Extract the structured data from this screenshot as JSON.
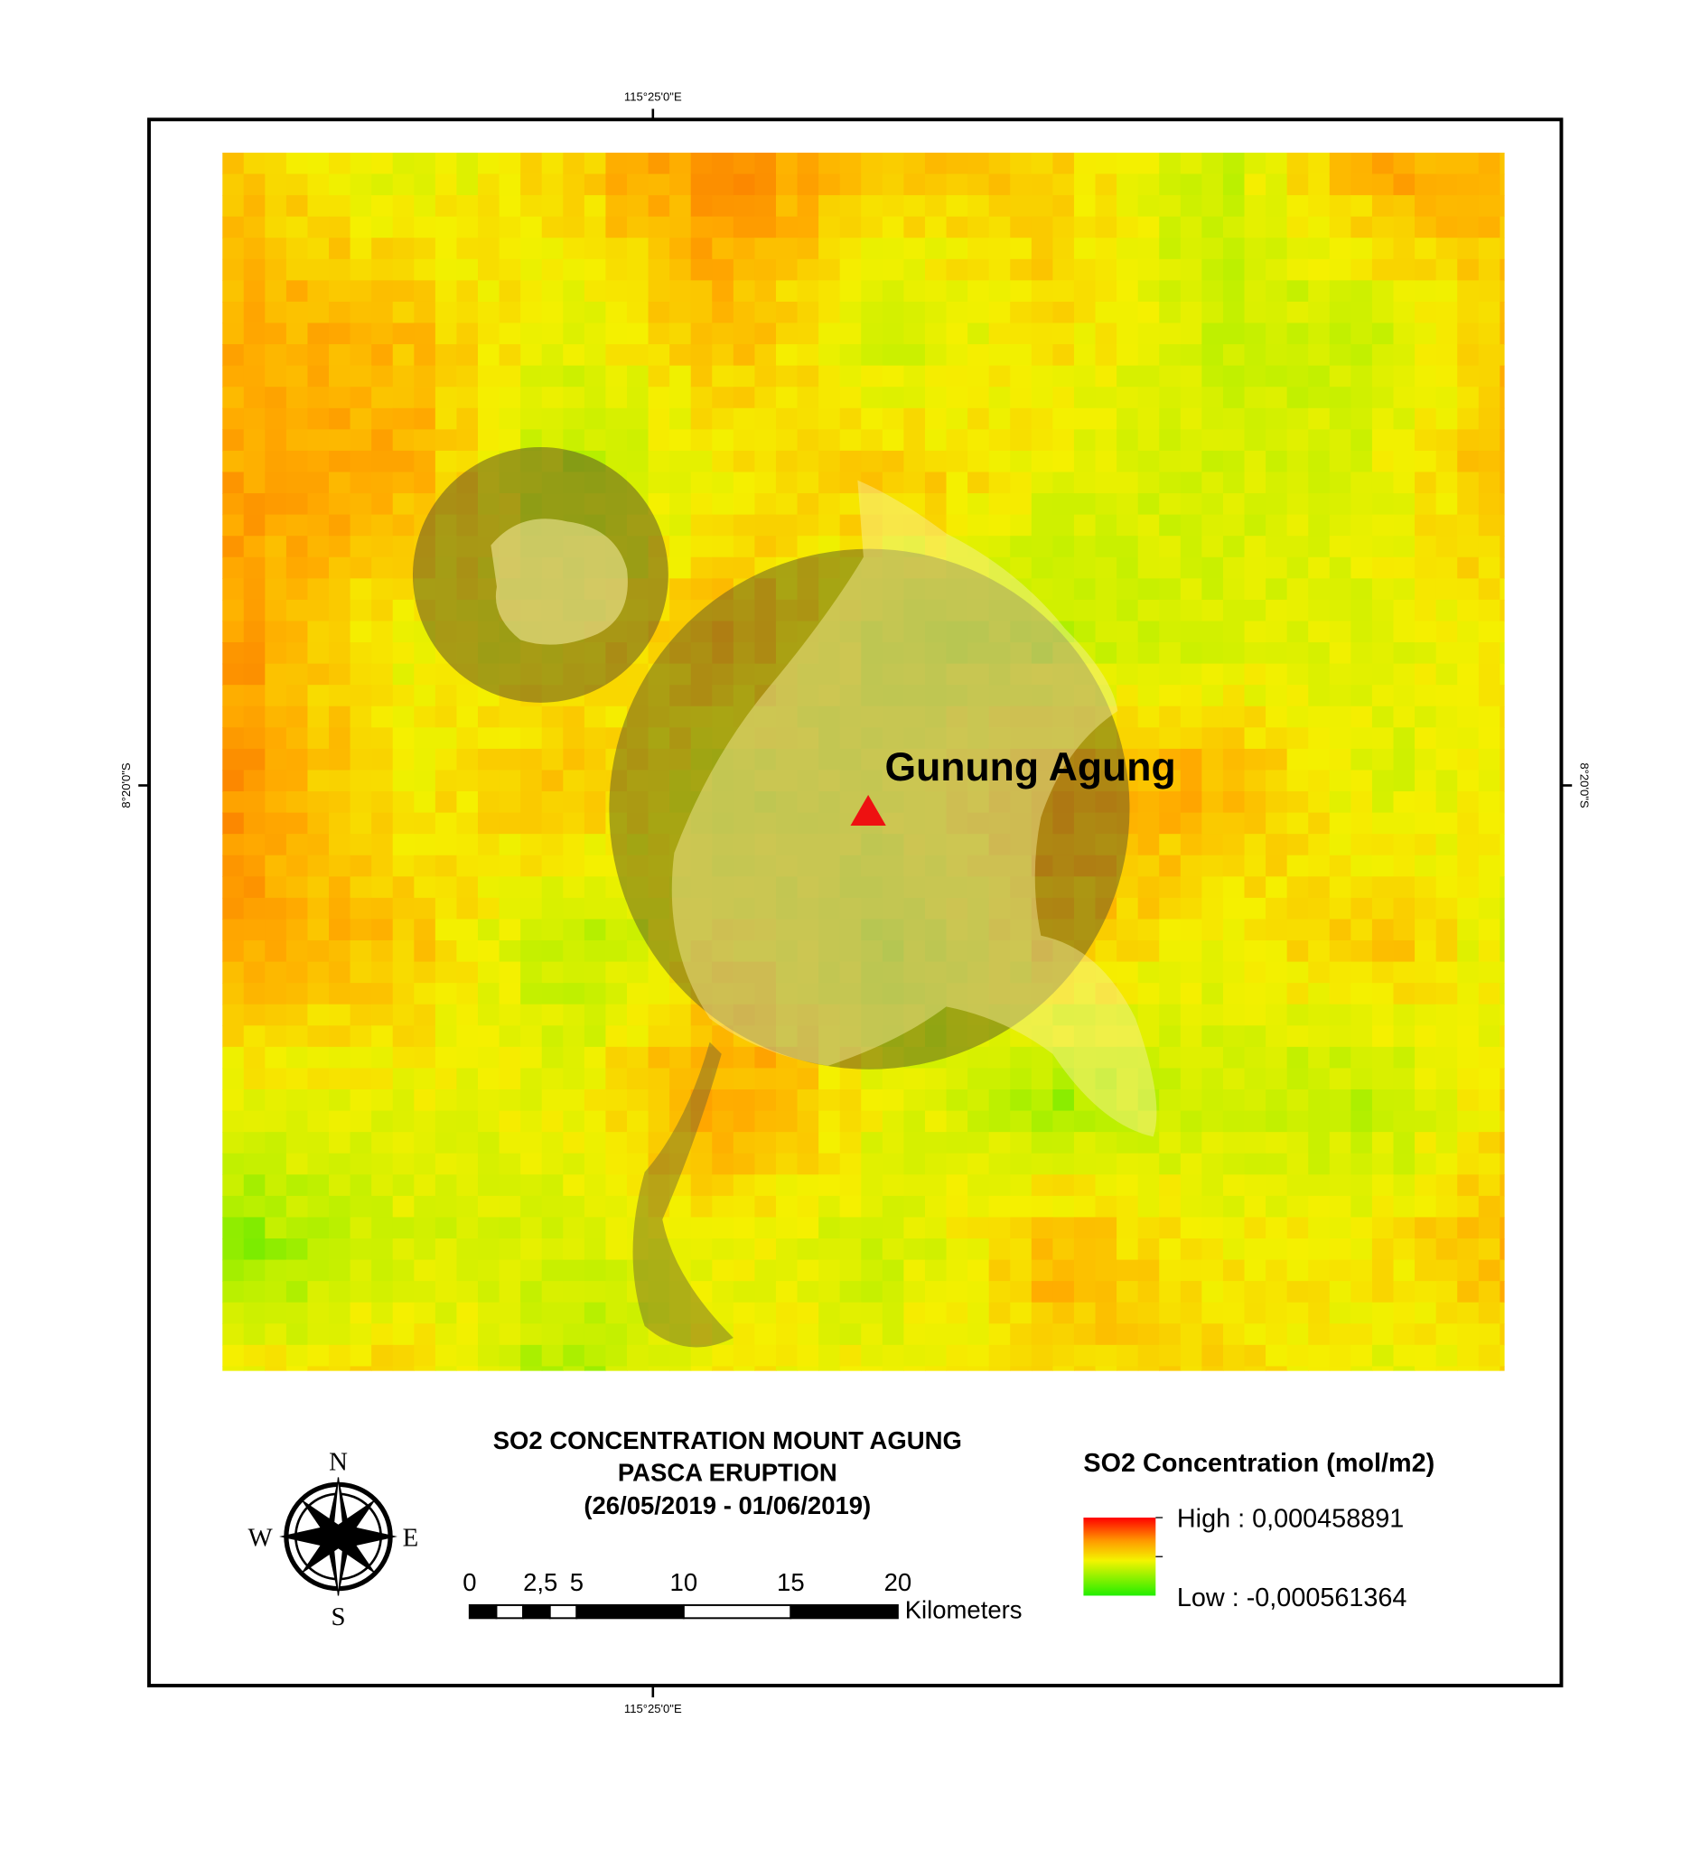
{
  "map": {
    "coords": {
      "top": "115°25'0\"E",
      "bottom": "115°25'0\"E",
      "left": "8°20'0\"S",
      "right": "8°20'0\"S"
    },
    "volcano_label": "Gunung Agung",
    "title": [
      "SO2 CONCENTRATION MOUNT AGUNG",
      "PASCA ERUPTION",
      "(26/05/2019 - 01/06/2019)"
    ],
    "compass": {
      "n": "N",
      "s": "S",
      "w": "W",
      "e": "E"
    },
    "scale_bar": {
      "labels": [
        "0",
        "2,5",
        "5",
        "10",
        "15",
        "20"
      ],
      "unit": "Kilometers"
    },
    "legend": {
      "title": "SO2 Concentration (mol/m2)",
      "high": "High : 0,000458891",
      "low": "Low : -0,000561364"
    }
  }
}
